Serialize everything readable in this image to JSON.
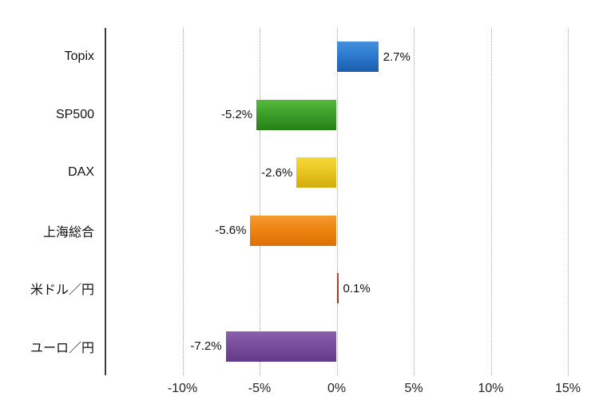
{
  "chart_data": {
    "type": "bar",
    "orientation": "horizontal",
    "title": "",
    "categories": [
      "Topix",
      "SP500",
      "DAX",
      "上海総合",
      "米ドル／円",
      "ユーロ／円"
    ],
    "slugs": [
      "topix",
      "sp500",
      "dax",
      "shanghai-composite",
      "usd-jpy",
      "eur-jpy"
    ],
    "values": [
      2.7,
      -5.2,
      -2.6,
      -5.6,
      0.1,
      -7.2
    ],
    "value_labels": [
      "2.7%",
      "-5.2%",
      "-2.6%",
      "-5.6%",
      "0.1%",
      "-7.2%"
    ],
    "bar_colors": [
      "#2d7bd0",
      "#3da02a",
      "#e9c722",
      "#ee8512",
      "#b5382b",
      "#7a4d9f"
    ],
    "bar_gradients": [
      [
        "#4690dc",
        "#2d7bd0",
        "#1a5cab"
      ],
      [
        "#57b93c",
        "#3da02a",
        "#268018"
      ],
      [
        "#f3d83c",
        "#e9c722",
        "#d2ab0e"
      ],
      [
        "#f49a31",
        "#ee8512",
        "#dd7004"
      ],
      [
        "#c04534",
        "#b5382b",
        "#9e2c20"
      ],
      [
        "#8b61ae",
        "#7a4d9f",
        "#63398a"
      ]
    ],
    "xlim": [
      -15,
      15
    ],
    "ticks": [
      -10,
      -5,
      0,
      5,
      10,
      15
    ],
    "tick_labels": [
      "-10%",
      "-5%",
      "0%",
      "5%",
      "10%",
      "15%"
    ],
    "grid": {
      "vertical": true,
      "style": "dotted",
      "color": "#9e9e9e"
    },
    "legend": null,
    "axis_line_color": "#3c3c3c",
    "text_color": "#111111",
    "background": "#ffffff"
  }
}
